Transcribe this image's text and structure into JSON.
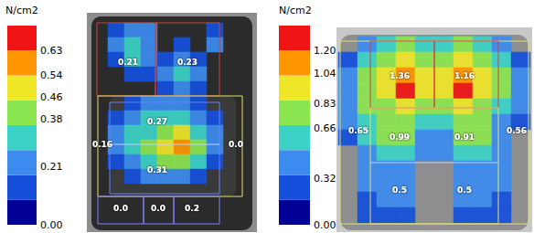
{
  "chart_data": [
    {
      "type": "heatmap",
      "tick_labels": false,
      "colorbar": {
        "title": "N/cm2",
        "range": [
          0,
          0.72
        ],
        "ticks": [
          {
            "value": 0,
            "label": "0.00"
          },
          0.21,
          0.38,
          0.46,
          0.54,
          0.63
        ],
        "colors": [
          "#000096",
          "#1450dc",
          "#3c8cf0",
          "#3cd2c8",
          "#8ce650",
          "#f0e628",
          "#ff9600",
          "#f01414"
        ]
      },
      "cells": [
        [
          null,
          0.15,
          0.25,
          0.2,
          null,
          null,
          null,
          0.15,
          null,
          null
        ],
        [
          null,
          0.2,
          0.35,
          0.25,
          null,
          0.15,
          null,
          0.2,
          null,
          null
        ],
        [
          null,
          0.15,
          0.3,
          0.2,
          0.15,
          0.2,
          0.15,
          null,
          null,
          null
        ],
        [
          null,
          null,
          0.15,
          0.12,
          0.2,
          0.3,
          0.2,
          null,
          null,
          null
        ],
        [
          null,
          null,
          null,
          null,
          0.15,
          0.2,
          0.15,
          null,
          null,
          null
        ],
        [
          null,
          null,
          0.15,
          0.2,
          0.2,
          0.2,
          0.15,
          null,
          null,
          null
        ],
        [
          null,
          0.15,
          0.25,
          0.3,
          0.3,
          0.3,
          0.25,
          0.15,
          null,
          null
        ],
        [
          null,
          0.2,
          0.3,
          0.35,
          0.4,
          0.45,
          0.35,
          0.2,
          null,
          null
        ],
        [
          null,
          0.2,
          0.3,
          0.4,
          0.45,
          0.55,
          0.4,
          0.2,
          null,
          null
        ],
        [
          null,
          0.15,
          0.25,
          0.35,
          0.4,
          0.4,
          0.3,
          0.15,
          null,
          null
        ],
        [
          null,
          null,
          0.15,
          0.2,
          0.25,
          0.2,
          0.15,
          null,
          null,
          null
        ],
        [
          null,
          null,
          null,
          null,
          null,
          null,
          null,
          null,
          null,
          null
        ]
      ],
      "zones": [
        0.21,
        0.23,
        0.27,
        0.16,
        {
          "value": 0,
          "label": "0.0"
        },
        0.31,
        {
          "value": 0,
          "label": "0.0"
        },
        {
          "value": 0,
          "label": "0.0"
        },
        0.2
      ]
    },
    {
      "type": "heatmap",
      "tick_labels": false,
      "colorbar": {
        "title": "N/cm2",
        "range": [
          0,
          1.37
        ],
        "ticks": [
          {
            "value": 0,
            "label": "0.00"
          },
          0.32,
          0.66,
          0.83,
          1.04,
          {
            "value": 1.2,
            "label": "1.20"
          }
        ],
        "colors": [
          "#000096",
          "#1450dc",
          "#3c8cf0",
          "#3cd2c8",
          "#8ce650",
          "#f0e628",
          "#ff9600",
          "#f01414"
        ]
      },
      "cells": [
        [
          null,
          0.4,
          0.6,
          0.7,
          0.6,
          0.6,
          0.7,
          0.6,
          0.4,
          null
        ],
        [
          0.3,
          0.6,
          0.8,
          0.9,
          0.8,
          0.8,
          0.9,
          0.8,
          0.6,
          0.3
        ],
        [
          0.4,
          0.7,
          0.9,
          1.1,
          0.9,
          0.9,
          1.1,
          0.9,
          0.7,
          0.4
        ],
        [
          0.5,
          0.7,
          0.9,
          1.25,
          0.9,
          0.9,
          1.22,
          0.9,
          0.7,
          0.5
        ],
        [
          0.5,
          0.7,
          0.8,
          1.0,
          0.8,
          0.8,
          0.95,
          0.8,
          0.6,
          0.4
        ],
        [
          0.4,
          0.6,
          0.7,
          0.8,
          0.6,
          0.6,
          0.75,
          0.7,
          0.5,
          0.3
        ],
        [
          0.3,
          0.6,
          0.7,
          0.7,
          0.5,
          0.5,
          0.7,
          0.7,
          0.5,
          null
        ],
        [
          null,
          0.5,
          0.6,
          0.6,
          0.4,
          0.4,
          0.6,
          0.6,
          0.4,
          null
        ],
        [
          null,
          0.4,
          0.5,
          0.5,
          null,
          null,
          0.5,
          0.5,
          0.4,
          null
        ],
        [
          null,
          0.4,
          0.5,
          0.5,
          null,
          null,
          0.5,
          0.5,
          0.4,
          null
        ],
        [
          null,
          0.3,
          0.4,
          0.4,
          null,
          null,
          0.4,
          0.4,
          0.3,
          null
        ],
        [
          null,
          0.2,
          0.3,
          0.3,
          null,
          null,
          0.3,
          0.3,
          0.2,
          null
        ]
      ],
      "zones": [
        1.36,
        1.16,
        0.65,
        0.99,
        0.91,
        0.56,
        0.5,
        0.5
      ]
    }
  ]
}
